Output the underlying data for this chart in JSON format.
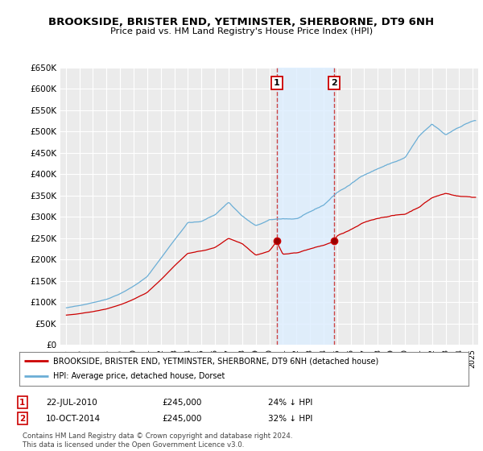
{
  "title": "BROOKSIDE, BRISTER END, YETMINSTER, SHERBORNE, DT9 6NH",
  "subtitle": "Price paid vs. HM Land Registry's House Price Index (HPI)",
  "ylim": [
    0,
    650000
  ],
  "yticks": [
    0,
    50000,
    100000,
    150000,
    200000,
    250000,
    300000,
    350000,
    400000,
    450000,
    500000,
    550000,
    600000,
    650000
  ],
  "x_start_year": 1995,
  "x_end_year": 2025,
  "background_color": "#ffffff",
  "plot_bg_color": "#ebebeb",
  "grid_color": "#ffffff",
  "sale1_date": "22-JUL-2010",
  "sale1_price": 245000,
  "sale1_hpi_diff": "24% ↓ HPI",
  "sale1_x": 2010.54,
  "sale2_date": "10-OCT-2014",
  "sale2_price": 245000,
  "sale2_hpi_diff": "32% ↓ HPI",
  "sale2_x": 2014.78,
  "legend_line1": "BROOKSIDE, BRISTER END, YETMINSTER, SHERBORNE, DT9 6NH (detached house)",
  "legend_line2": "HPI: Average price, detached house, Dorset",
  "footnote1": "Contains HM Land Registry data © Crown copyright and database right 2024.",
  "footnote2": "This data is licensed under the Open Government Licence v3.0.",
  "hpi_color": "#6baed6",
  "price_color": "#cc0000",
  "shade_color": "#ddeeff",
  "vline_color": "#cc4444"
}
